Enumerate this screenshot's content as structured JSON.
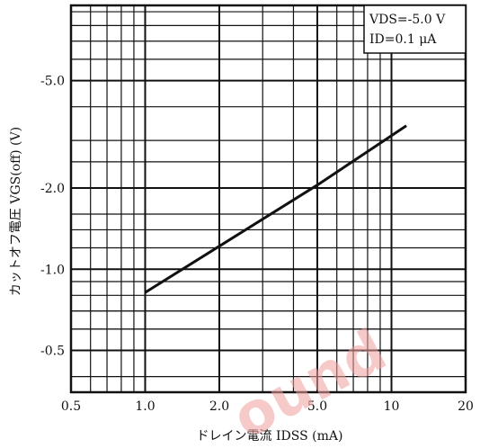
{
  "chart_data": {
    "type": "line",
    "x_scale": "log",
    "y_scale": "log",
    "xlim": [
      0.5,
      20
    ],
    "ylim": [
      0.35,
      9.5
    ],
    "x_ticks": [
      0.5,
      1.0,
      2.0,
      5.0,
      10,
      20
    ],
    "x_tick_labels": [
      "0.5",
      "1.0",
      "2.0",
      "5.0",
      "10",
      "20"
    ],
    "y_ticks": [
      0.5,
      1.0,
      2.0,
      5.0
    ],
    "y_tick_labels": [
      "-0.5",
      "-1.0",
      "-2.0",
      "-5.0"
    ],
    "xlabel": "ドレイン電流 IDSS (mA)",
    "ylabel": "カットオフ電圧 VGS(off) (V)",
    "grid": true,
    "legend": {
      "placement": "top-right",
      "lines": [
        "VDS=-5.0 V",
        "ID=0.1 μA"
      ]
    },
    "series": [
      {
        "x": [
          1.0,
          5.0,
          11.5
        ],
        "y": [
          0.82,
          2.05,
          3.4
        ]
      }
    ]
  },
  "watermark": "ound"
}
